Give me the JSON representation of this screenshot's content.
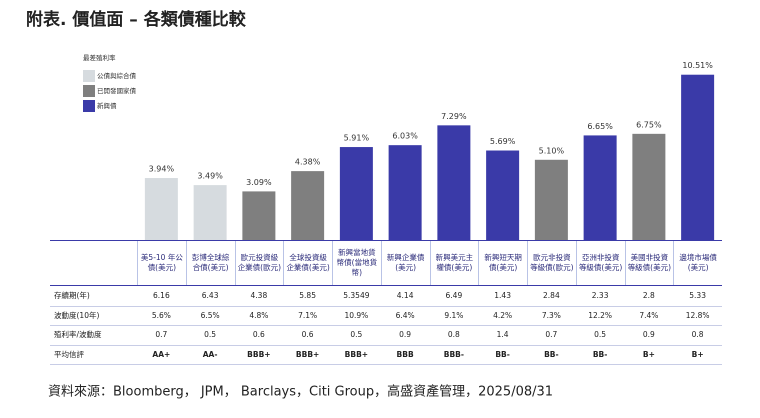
{
  "chart_data": {
    "type": "bar",
    "title": "附表. 價值面 – 各類債種比較",
    "legend_title": "最差殖利率",
    "legend": [
      {
        "name": "公債與綜合債",
        "color": "#d6dbdf"
      },
      {
        "name": "已開發國家債",
        "color": "#7f7f7f"
      },
      {
        "name": "新興債",
        "color": "#3a3aa8"
      }
    ],
    "categories": [
      "美5-10 年公債(美元)",
      "彭博全球綜合債(美元)",
      "歐元投資級企業債(歐元)",
      "全球投資級企業債(美元)",
      "新興當地貨幣債(當地貨幣)",
      "新興企業債(美元)",
      "新興美元主權債(美元)",
      "新興短天期債(美元)",
      "歐元非投資等級債(歐元)",
      "亞洲非投資等級債(美元)",
      "美國非投資等級債(美元)",
      "邊境市場債(美元)"
    ],
    "values": [
      3.94,
      3.49,
      3.09,
      4.38,
      5.91,
      6.03,
      7.29,
      5.69,
      5.1,
      6.65,
      6.75,
      10.51
    ],
    "value_labels": [
      "3.94%",
      "3.49%",
      "3.09%",
      "4.38%",
      "5.91%",
      "6.03%",
      "7.29%",
      "5.69%",
      "5.10%",
      "6.65%",
      "6.75%",
      "10.51%"
    ],
    "colors": [
      "#d6dbdf",
      "#d6dbdf",
      "#7f7f7f",
      "#7f7f7f",
      "#3a3aa8",
      "#3a3aa8",
      "#3a3aa8",
      "#3a3aa8",
      "#7f7f7f",
      "#3a3aa8",
      "#7f7f7f",
      "#3a3aa8"
    ],
    "ylim": [
      0,
      11
    ]
  },
  "table": {
    "rows": [
      {
        "label": "存續期(年)",
        "cells": [
          "6.16",
          "6.43",
          "4.38",
          "5.85",
          "5.3549",
          "4.14",
          "6.49",
          "1.43",
          "2.84",
          "2.33",
          "2.8",
          "5.33"
        ]
      },
      {
        "label": "波動度(10年)",
        "cells": [
          "5.6%",
          "6.5%",
          "4.8%",
          "7.1%",
          "10.9%",
          "6.4%",
          "9.1%",
          "4.2%",
          "7.3%",
          "12.2%",
          "7.4%",
          "12.8%"
        ]
      },
      {
        "label": "殖利率/波動度",
        "cells": [
          "0.7",
          "0.5",
          "0.6",
          "0.6",
          "0.5",
          "0.9",
          "0.8",
          "1.4",
          "0.7",
          "0.5",
          "0.9",
          "0.8"
        ]
      },
      {
        "label": "平均信評",
        "cells": [
          "AA+",
          "AA-",
          "BBB+",
          "BBB+",
          "BBB+",
          "BBB",
          "BBB-",
          "BB-",
          "BB-",
          "BB-",
          "B+",
          "B+"
        ]
      }
    ]
  },
  "source": "資料來源：Bloomberg， JPM， Barclays，Citi Group，高盛資產管理，2025/08/31"
}
